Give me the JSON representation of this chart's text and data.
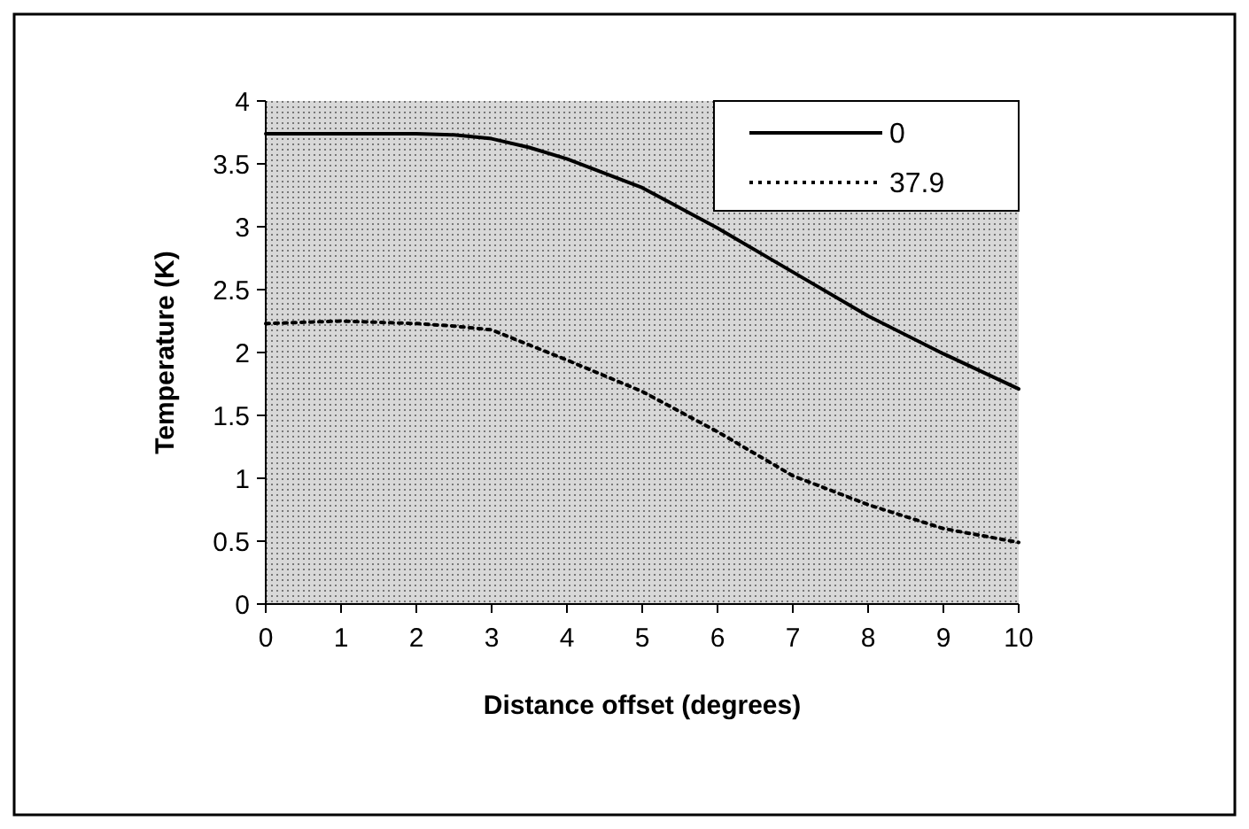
{
  "chart_data": {
    "type": "line",
    "xlabel": "Distance offset (degrees)",
    "ylabel": "Temperature (K)",
    "xlim": [
      0,
      10
    ],
    "xticks": [
      0,
      1,
      2,
      3,
      4,
      5,
      6,
      7,
      8,
      9,
      10
    ],
    "ylim": [
      0,
      4
    ],
    "yticks": [
      0,
      0.5,
      1,
      1.5,
      2,
      2.5,
      3,
      3.5,
      4
    ],
    "x": [
      0,
      1,
      2,
      2.5,
      3,
      3.5,
      4,
      5,
      6,
      7,
      8,
      9,
      10
    ],
    "series": [
      {
        "name": "0",
        "color": "#000000",
        "line_style": "solid",
        "values": [
          3.74,
          3.74,
          3.74,
          3.73,
          3.7,
          3.63,
          3.54,
          3.31,
          2.99,
          2.64,
          2.29,
          1.99,
          1.71
        ]
      },
      {
        "name": "37.9",
        "color": "#000000",
        "line_style": "dotted",
        "values": [
          2.23,
          2.25,
          2.23,
          2.21,
          2.18,
          2.06,
          1.94,
          1.69,
          1.37,
          1.02,
          0.79,
          0.6,
          0.49
        ]
      }
    ],
    "legend": "top right",
    "grid": false,
    "marker": "none"
  }
}
